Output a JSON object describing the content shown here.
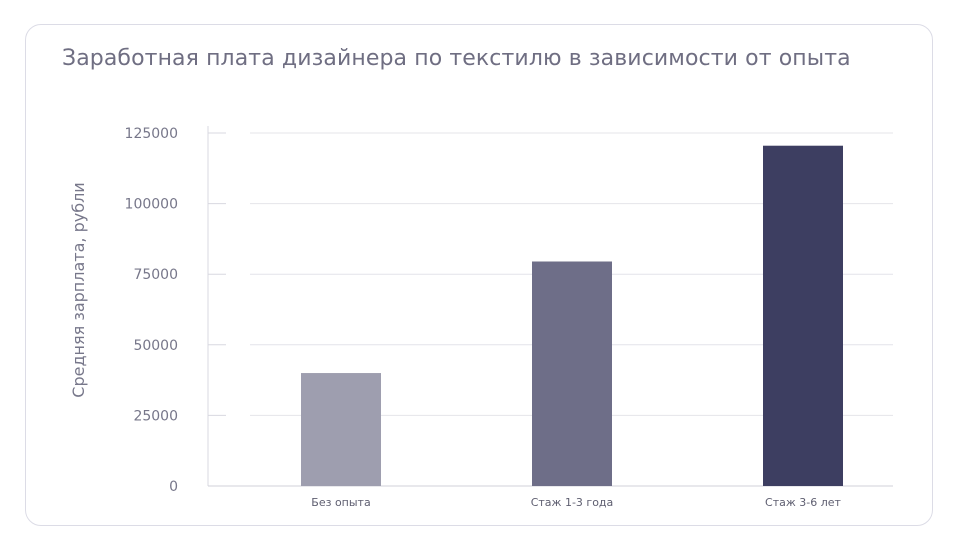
{
  "chart_data": {
    "type": "bar",
    "title": "Заработная плата дизайнера по текстилю в зависимости от опыта",
    "xlabel": "",
    "ylabel": "Средняя зарплата, рубли",
    "categories": [
      "Без опыта",
      "Стаж 1-3 года",
      "Стаж 3-6 лет"
    ],
    "values": [
      40000,
      79500,
      120500
    ],
    "bar_colors": [
      "#9e9eaf",
      "#6e6e88",
      "#3d3e61"
    ],
    "ylim": [
      0,
      125000
    ],
    "yticks": [
      0,
      25000,
      50000,
      75000,
      100000,
      125000
    ],
    "ytick_labels": [
      "0",
      "25000",
      "50000",
      "75000",
      "100000",
      "125000"
    ],
    "grid": true,
    "legend": "none"
  }
}
